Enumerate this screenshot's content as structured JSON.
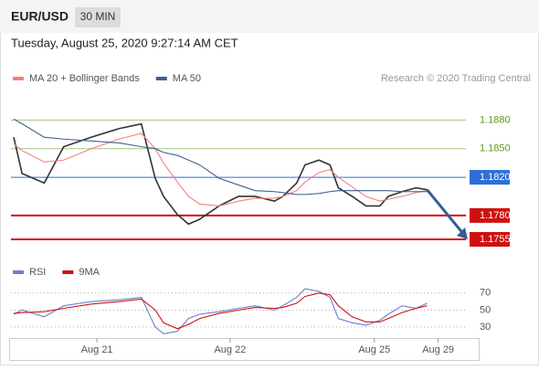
{
  "header": {
    "symbol": "EUR/USD",
    "interval": "30 MIN",
    "timestamp": "Tuesday, August 25, 2020 9:27:14 AM CET",
    "credit": "Research © 2020 Trading Central"
  },
  "chart_data": [
    {
      "type": "line",
      "x": [
        1,
        4,
        12,
        19,
        29,
        39,
        47,
        52,
        55,
        60,
        64,
        68,
        75,
        82,
        88,
        95,
        98,
        103,
        106,
        111,
        115,
        118,
        123,
        128,
        133,
        136,
        141,
        146,
        150
      ],
      "series": [
        {
          "color": "#333333",
          "values": [
            1.1862,
            1.1824,
            1.1814,
            1.1852,
            1.1862,
            1.1871,
            1.1876,
            1.1819,
            1.18,
            1.1781,
            1.1771,
            1.1776,
            1.179,
            1.18,
            1.18,
            1.1795,
            1.18,
            1.1814,
            1.1833,
            1.1838,
            1.1833,
            1.1809,
            1.18,
            1.179,
            1.179,
            1.18,
            1.1805,
            1.1809,
            1.1807
          ]
        },
        {
          "name": "MA 20 + Bollinger Bands",
          "color": "#f08080",
          "values": [
            1.1855,
            1.1848,
            1.1836,
            1.1838,
            1.185,
            1.186,
            1.1866,
            1.185,
            1.1835,
            1.1815,
            1.18,
            1.1792,
            1.179,
            1.1795,
            1.1798,
            1.1798,
            1.18,
            1.1806,
            1.1815,
            1.1825,
            1.1828,
            1.182,
            1.181,
            1.18,
            1.1795,
            1.1797,
            1.18,
            1.1804,
            1.1806
          ]
        },
        {
          "name": "MA 50",
          "color": "#3f5f8f",
          "values": [
            1.1881,
            1.1876,
            1.1862,
            1.186,
            1.1858,
            1.1856,
            1.1852,
            1.185,
            1.1846,
            1.1843,
            1.1838,
            1.1833,
            1.1819,
            1.1812,
            1.1806,
            1.1805,
            1.1804,
            1.1802,
            1.1802,
            1.1803,
            1.1805,
            1.1806,
            1.1806,
            1.1806,
            1.1806,
            1.1806,
            1.1805,
            1.1805,
            1.1805
          ]
        }
      ],
      "xlim": [
        0,
        164
      ],
      "ylim": [
        1.1733,
        1.191
      ],
      "levels": [
        {
          "value": 1.188,
          "label": "1.1880",
          "color": "#5a9a1a"
        },
        {
          "value": 1.185,
          "label": "1.1850",
          "color": "#5a9a1a"
        },
        {
          "value": 1.182,
          "label": "1.1820",
          "color": "#2d6fd6"
        },
        {
          "value": 1.178,
          "label": "1.1780",
          "color": "#d01010"
        },
        {
          "value": 1.1755,
          "label": "1.1755",
          "color": "#d01010"
        }
      ]
    },
    {
      "type": "line",
      "x": [
        1,
        4,
        12,
        19,
        29,
        39,
        47,
        52,
        55,
        60,
        64,
        68,
        75,
        82,
        88,
        95,
        98,
        103,
        106,
        111,
        115,
        118,
        123,
        128,
        133,
        136,
        141,
        146,
        150
      ],
      "series": [
        {
          "name": "RSI",
          "color": "#6a7fd0",
          "values": [
            45,
            50,
            42,
            55,
            60,
            62,
            65,
            30,
            22,
            25,
            40,
            45,
            48,
            52,
            55,
            50,
            55,
            65,
            75,
            72,
            65,
            40,
            35,
            32,
            38,
            45,
            55,
            52,
            58
          ]
        },
        {
          "name": "9MA",
          "color": "#d01010",
          "values": [
            46,
            47,
            48,
            52,
            57,
            60,
            63,
            50,
            35,
            28,
            33,
            40,
            46,
            50,
            53,
            52,
            53,
            58,
            66,
            70,
            68,
            55,
            42,
            36,
            36,
            40,
            47,
            52,
            55
          ]
        }
      ],
      "xlim": [
        0,
        164
      ],
      "ylim": [
        17,
        87
      ],
      "yticks": [
        30,
        50,
        70
      ],
      "xticks": [
        {
          "value": 31,
          "label": "Aug 21"
        },
        {
          "value": 79,
          "label": "Aug 22"
        },
        {
          "value": 131,
          "label": "Aug 25"
        },
        {
          "value": 154,
          "label": "Aug 29"
        }
      ]
    }
  ]
}
